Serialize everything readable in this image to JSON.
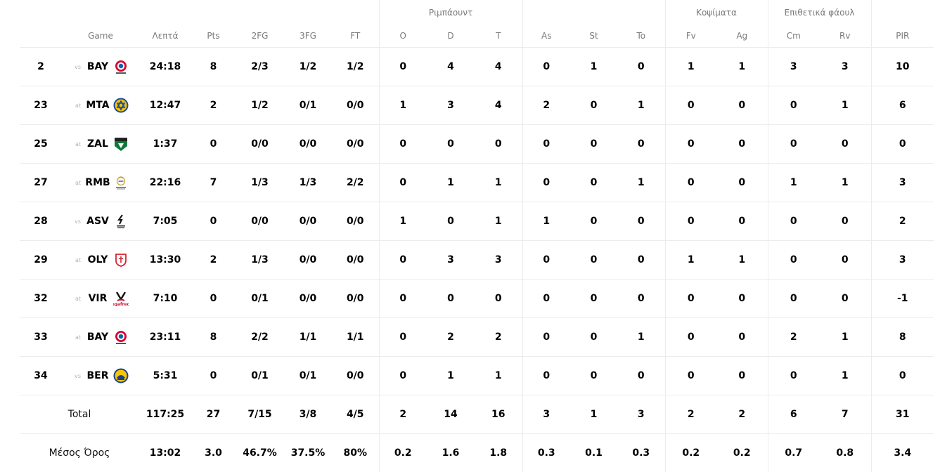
{
  "header": {
    "groups": {
      "rebounds": "Ριμπάουντ",
      "blocks": "Κοψίματα",
      "fouls": "Επιθετικά φάουλ"
    },
    "columns": {
      "game": "Game",
      "minutes": "Λεπτά",
      "points": "Pts",
      "two_fg": "2FG",
      "three_fg": "3FG",
      "ft": "FT",
      "off_reb": "O",
      "def_reb": "D",
      "tot_reb": "T",
      "assists": "As",
      "steals": "St",
      "turnovers": "To",
      "blocks_favor": "Fv",
      "blocks_against": "Ag",
      "fouls_committed": "Cm",
      "fouls_received": "Rv",
      "pir": "PIR"
    }
  },
  "games": [
    {
      "round": "2",
      "prefix": "vs",
      "opponent": "BAY",
      "logo_icon": "bayern-logo-icon",
      "minutes": "24:18",
      "points": "8",
      "two_fg": "2/3",
      "three_fg": "1/2",
      "ft": "1/2",
      "off_reb": "0",
      "def_reb": "4",
      "tot_reb": "4",
      "assists": "0",
      "steals": "1",
      "turnovers": "0",
      "blocks_favor": "1",
      "blocks_against": "1",
      "fouls_committed": "3",
      "fouls_received": "3",
      "pir": "10"
    },
    {
      "round": "23",
      "prefix": "at",
      "opponent": "MTA",
      "logo_icon": "maccabi-logo-icon",
      "minutes": "12:47",
      "points": "2",
      "two_fg": "1/2",
      "three_fg": "0/1",
      "ft": "0/0",
      "off_reb": "1",
      "def_reb": "3",
      "tot_reb": "4",
      "assists": "2",
      "steals": "0",
      "turnovers": "1",
      "blocks_favor": "0",
      "blocks_against": "0",
      "fouls_committed": "0",
      "fouls_received": "1",
      "pir": "6"
    },
    {
      "round": "25",
      "prefix": "at",
      "opponent": "ZAL",
      "logo_icon": "zalgiris-logo-icon",
      "minutes": "1:37",
      "points": "0",
      "two_fg": "0/0",
      "three_fg": "0/0",
      "ft": "0/0",
      "off_reb": "0",
      "def_reb": "0",
      "tot_reb": "0",
      "assists": "0",
      "steals": "0",
      "turnovers": "0",
      "blocks_favor": "0",
      "blocks_against": "0",
      "fouls_committed": "0",
      "fouls_received": "0",
      "pir": "0"
    },
    {
      "round": "27",
      "prefix": "at",
      "opponent": "RMB",
      "logo_icon": "real-madrid-logo-icon",
      "minutes": "22:16",
      "points": "7",
      "two_fg": "1/3",
      "three_fg": "1/3",
      "ft": "2/2",
      "off_reb": "0",
      "def_reb": "1",
      "tot_reb": "1",
      "assists": "0",
      "steals": "0",
      "turnovers": "1",
      "blocks_favor": "0",
      "blocks_against": "0",
      "fouls_committed": "1",
      "fouls_received": "1",
      "pir": "3"
    },
    {
      "round": "28",
      "prefix": "vs",
      "opponent": "ASV",
      "logo_icon": "asvel-logo-icon",
      "minutes": "7:05",
      "points": "0",
      "two_fg": "0/0",
      "three_fg": "0/0",
      "ft": "0/0",
      "off_reb": "1",
      "def_reb": "0",
      "tot_reb": "1",
      "assists": "1",
      "steals": "0",
      "turnovers": "0",
      "blocks_favor": "0",
      "blocks_against": "0",
      "fouls_committed": "0",
      "fouls_received": "0",
      "pir": "2"
    },
    {
      "round": "29",
      "prefix": "at",
      "opponent": "OLY",
      "logo_icon": "olympiacos-logo-icon",
      "minutes": "13:30",
      "points": "2",
      "two_fg": "1/3",
      "three_fg": "0/0",
      "ft": "0/0",
      "off_reb": "0",
      "def_reb": "3",
      "tot_reb": "3",
      "assists": "0",
      "steals": "0",
      "turnovers": "0",
      "blocks_favor": "1",
      "blocks_against": "1",
      "fouls_committed": "0",
      "fouls_received": "0",
      "pir": "3"
    },
    {
      "round": "32",
      "prefix": "at",
      "opponent": "VIR",
      "logo_icon": "virtus-logo-icon",
      "minutes": "7:10",
      "points": "0",
      "two_fg": "0/1",
      "three_fg": "0/0",
      "ft": "0/0",
      "off_reb": "0",
      "def_reb": "0",
      "tot_reb": "0",
      "assists": "0",
      "steals": "0",
      "turnovers": "0",
      "blocks_favor": "0",
      "blocks_against": "0",
      "fouls_committed": "0",
      "fouls_received": "0",
      "pir": "-1"
    },
    {
      "round": "33",
      "prefix": "at",
      "opponent": "BAY",
      "logo_icon": "bayern-logo-icon",
      "minutes": "23:11",
      "points": "8",
      "two_fg": "2/2",
      "three_fg": "1/1",
      "ft": "1/1",
      "off_reb": "0",
      "def_reb": "2",
      "tot_reb": "2",
      "assists": "0",
      "steals": "0",
      "turnovers": "1",
      "blocks_favor": "0",
      "blocks_against": "0",
      "fouls_committed": "2",
      "fouls_received": "1",
      "pir": "8"
    },
    {
      "round": "34",
      "prefix": "vs",
      "opponent": "BER",
      "logo_icon": "alba-berlin-logo-icon",
      "minutes": "5:31",
      "points": "0",
      "two_fg": "0/1",
      "three_fg": "0/1",
      "ft": "0/0",
      "off_reb": "0",
      "def_reb": "1",
      "tot_reb": "1",
      "assists": "0",
      "steals": "0",
      "turnovers": "0",
      "blocks_favor": "0",
      "blocks_against": "0",
      "fouls_committed": "0",
      "fouls_received": "1",
      "pir": "0"
    }
  ],
  "totals": {
    "label": "Total",
    "minutes": "117:25",
    "points": "27",
    "two_fg": "7/15",
    "three_fg": "3/8",
    "ft": "4/5",
    "off_reb": "2",
    "def_reb": "14",
    "tot_reb": "16",
    "assists": "3",
    "steals": "1",
    "turnovers": "3",
    "blocks_favor": "2",
    "blocks_against": "2",
    "fouls_committed": "6",
    "fouls_received": "7",
    "pir": "31"
  },
  "averages": {
    "label": "Μέσος Όρος",
    "minutes": "13:02",
    "points": "3.0",
    "two_fg": "46.7%",
    "three_fg": "37.5%",
    "ft": "80%",
    "off_reb": "0.2",
    "def_reb": "1.6",
    "tot_reb": "1.8",
    "assists": "0.3",
    "steals": "0.1",
    "turnovers": "0.3",
    "blocks_favor": "0.2",
    "blocks_against": "0.2",
    "fouls_committed": "0.7",
    "fouls_received": "0.8",
    "pir": "3.4"
  },
  "colors": {
    "header_text": "#7a7a7a",
    "divider": "#ececec",
    "prefix_text": "#b3b3b3"
  }
}
